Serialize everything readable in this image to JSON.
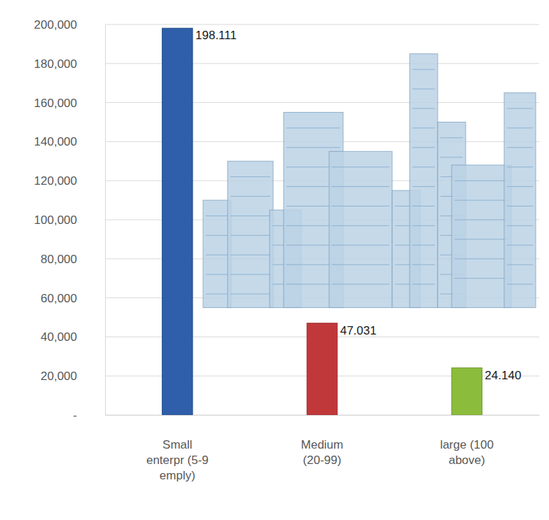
{
  "chart_data": {
    "type": "bar",
    "categories": [
      "Small enterpr (5-9 emply)",
      "Medium (20-99)",
      "large (100 above)"
    ],
    "values": [
      198111,
      47031,
      24140
    ],
    "value_labels": [
      "198.111",
      "47.031",
      "24.140"
    ],
    "colors": [
      "#2f5faa",
      "#c0383a",
      "#8cbc3c"
    ],
    "ylim": [
      0,
      200000
    ],
    "yticks": [
      {
        "value": 0,
        "label": "-"
      },
      {
        "value": 20000,
        "label": "20,000"
      },
      {
        "value": 40000,
        "label": "40,000"
      },
      {
        "value": 60000,
        "label": "60,000"
      },
      {
        "value": 80000,
        "label": "80,000"
      },
      {
        "value": 100000,
        "label": "100,000"
      },
      {
        "value": 120000,
        "label": "120,000"
      },
      {
        "value": 140000,
        "label": "140,000"
      },
      {
        "value": 160000,
        "label": "160,000"
      },
      {
        "value": 180000,
        "label": "180,000"
      },
      {
        "value": 200000,
        "label": "200,000"
      }
    ],
    "grid": true,
    "data_labels": true
  }
}
